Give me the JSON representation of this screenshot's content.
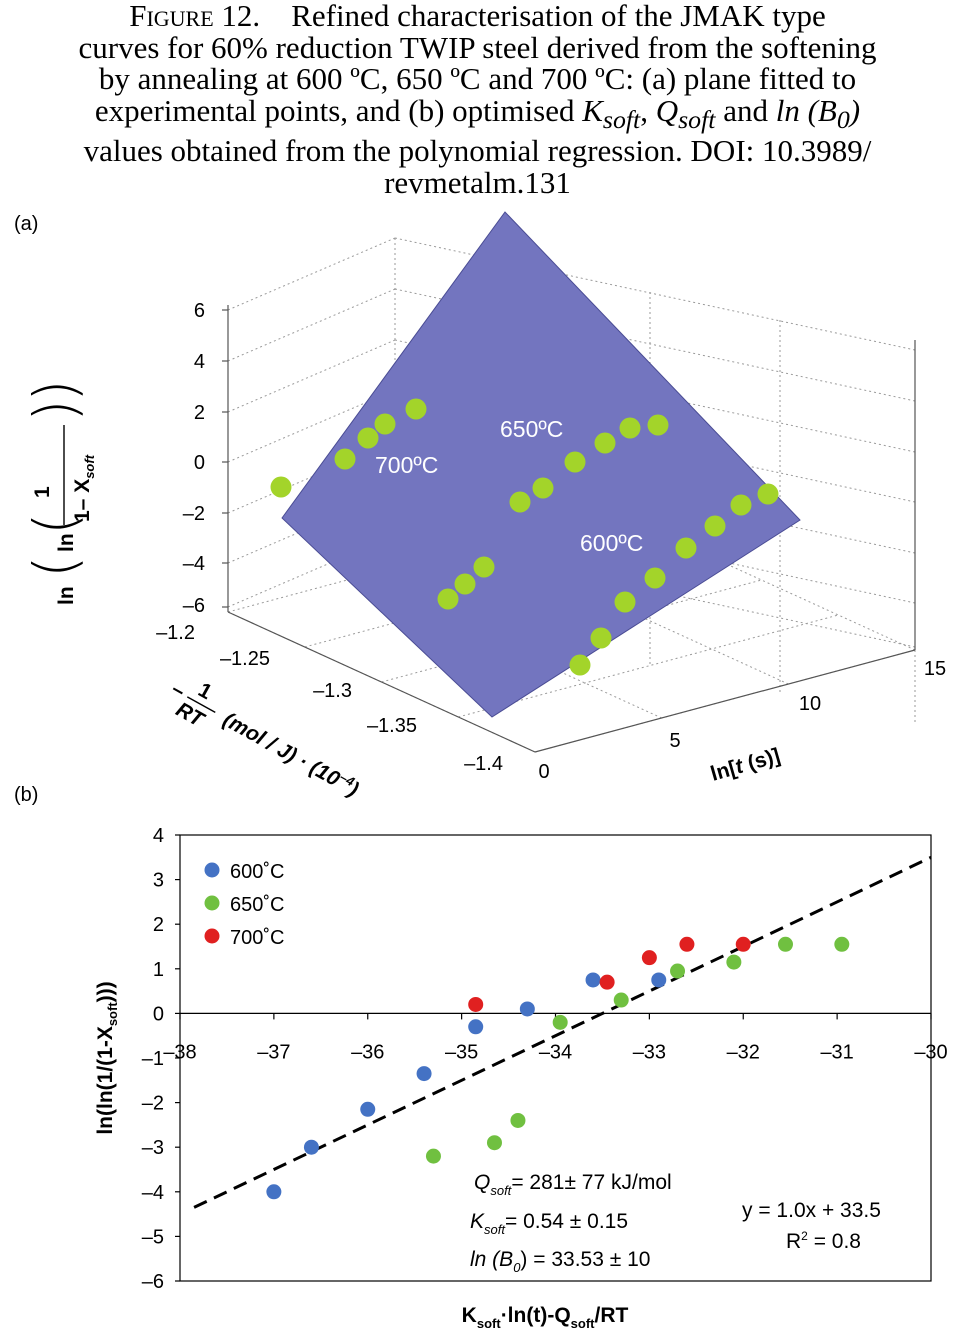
{
  "caption": {
    "figure_label": "Figure 12.",
    "line1_rest": "Refined characterisation of the JMAK type",
    "line2": "curves for 60% reduction TWIP steel derived from the softening",
    "line3": "by annealing at 600 ºC, 650 ºC and 700 ºC: (a) plane fitted to",
    "line4_pre": "experimental points, and (b) optimised ",
    "k_sym": "K",
    "q_sym": "Q",
    "soft_sub": "soft",
    "comma": ", ",
    "and_word": " and ",
    "ln_b0": "ln (B",
    "b0_sub": "0",
    "ln_close": ")",
    "line5": "values obtained from the polynomial regression.  DOI: 10.3989/",
    "line6": "revmetalm.131"
  },
  "panel_a": {
    "label": "(a)",
    "z_ticks": [
      "6",
      "4",
      "2",
      "0",
      "–2",
      "–4",
      "–6"
    ],
    "y_ticks": [
      "–1.2",
      "–1.25",
      "–1.3",
      "–1.35",
      "–1.4"
    ],
    "x_ticks": [
      "0",
      "5",
      "10",
      "15"
    ],
    "z_label_ln": "ln",
    "z_label_one": "1",
    "z_label_den": "1– X",
    "z_label_sub": "soft",
    "y_label_minus": "–",
    "y_label_num": "1",
    "y_label_den": "RT",
    "y_label_rest": "(mol / J) · (10",
    "y_label_exp": "–4",
    "y_label_close": ")",
    "x_label_pre": "ln[",
    "x_label_t": "t",
    "x_label_post": " (s)]",
    "temp_labels": [
      "700ºC",
      "650ºC",
      "600ºC"
    ],
    "colors": {
      "plane": "#7375bf",
      "plane_edge": "#4a4c94",
      "points": "#a3d42a",
      "grid": "#9a9a9a"
    }
  },
  "panel_b": {
    "label": "(b)",
    "chart_data": {
      "type": "scatter",
      "xlim": [
        -38,
        -30
      ],
      "ylim": [
        -6,
        4
      ],
      "x_ticks": [
        "–38",
        "–37",
        "–36",
        "–35",
        "–34",
        "–33",
        "–32",
        "–31",
        "–30"
      ],
      "y_ticks": [
        "4",
        "3",
        "2",
        "1",
        "0",
        "–1",
        "–2",
        "–3",
        "–4",
        "–5",
        "–6"
      ],
      "series": [
        {
          "name": "600˚C",
          "color": "#4472c4",
          "points": [
            [
              -37.0,
              -4.0
            ],
            [
              -36.6,
              -3.0
            ],
            [
              -36.0,
              -2.15
            ],
            [
              -35.4,
              -1.35
            ],
            [
              -34.85,
              -0.3
            ],
            [
              -34.3,
              0.1
            ],
            [
              -33.6,
              0.75
            ],
            [
              -32.9,
              0.75
            ]
          ]
        },
        {
          "name": "650˚C",
          "color": "#70c040",
          "points": [
            [
              -35.3,
              -3.2
            ],
            [
              -34.65,
              -2.9
            ],
            [
              -34.4,
              -2.4
            ],
            [
              -33.95,
              -0.2
            ],
            [
              -33.3,
              0.3
            ],
            [
              -32.7,
              0.95
            ],
            [
              -32.1,
              1.15
            ],
            [
              -31.55,
              1.55
            ],
            [
              -30.95,
              1.55
            ]
          ]
        },
        {
          "name": "700˚C",
          "color": "#e02020",
          "points": [
            [
              -34.85,
              0.2
            ],
            [
              -33.45,
              0.7
            ],
            [
              -33.0,
              1.25
            ],
            [
              -32.6,
              1.55
            ],
            [
              -32.0,
              1.55
            ]
          ]
        }
      ],
      "fit_line": {
        "slope": 1.0,
        "intercept": 33.5,
        "style": "dashed"
      },
      "legend_position": "top-left",
      "xlabel_main": "K",
      "xlabel_sub1": "soft",
      "xlabel_mid": "·ln(t)-Q",
      "xlabel_sub2": "soft",
      "xlabel_end": "/RT",
      "ylabel_pre": "ln(ln(1/(1-X",
      "ylabel_sub": "soft",
      "ylabel_post": ")))",
      "equation": "y = 1.0x + 33.5",
      "r2_pre": "R",
      "r2_sup": "2",
      "r2_post": " = 0.8",
      "annotations": {
        "q_sym": "Q",
        "q_sub": "soft",
        "q_val": "= 281± 77 kJ/mol",
        "k_sym": "K",
        "k_sub": "soft",
        "k_val": "= 0.54 ± 0.15",
        "b_pre": "ln (B",
        "b_sub": "0",
        "b_val": ") = 33.53 ± 10"
      }
    }
  }
}
